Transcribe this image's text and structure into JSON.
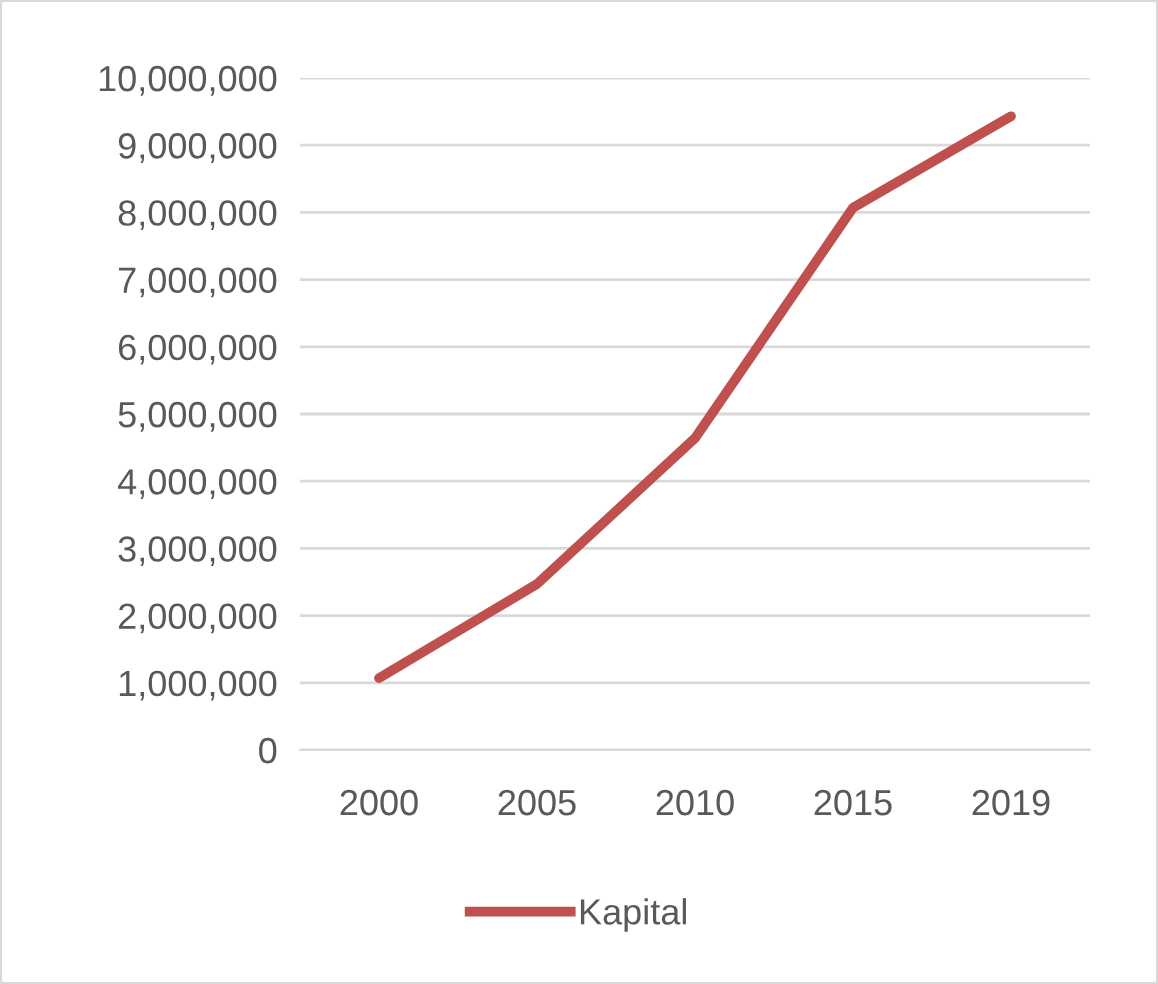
{
  "chart_data": {
    "type": "line",
    "categories": [
      "2000",
      "2005",
      "2010",
      "2015",
      "2019"
    ],
    "series": [
      {
        "name": "Kapital",
        "color": "#c0504d",
        "values": [
          1070000,
          2470000,
          4640000,
          8070000,
          9430000
        ]
      }
    ],
    "ylim": [
      0,
      10000000
    ],
    "yticks": [
      {
        "value": 0,
        "label": "0"
      },
      {
        "value": 1000000,
        "label": "1,000,000"
      },
      {
        "value": 2000000,
        "label": "2,000,000"
      },
      {
        "value": 3000000,
        "label": "3,000,000"
      },
      {
        "value": 4000000,
        "label": "4,000,000"
      },
      {
        "value": 5000000,
        "label": "5,000,000"
      },
      {
        "value": 6000000,
        "label": "6,000,000"
      },
      {
        "value": 7000000,
        "label": "7,000,000"
      },
      {
        "value": 8000000,
        "label": "8,000,000"
      },
      {
        "value": 9000000,
        "label": "9,000,000"
      },
      {
        "value": 10000000,
        "label": "10,000,000"
      }
    ],
    "grid": "y",
    "legend": "bottom",
    "marker": "none",
    "line_style": "solid"
  }
}
